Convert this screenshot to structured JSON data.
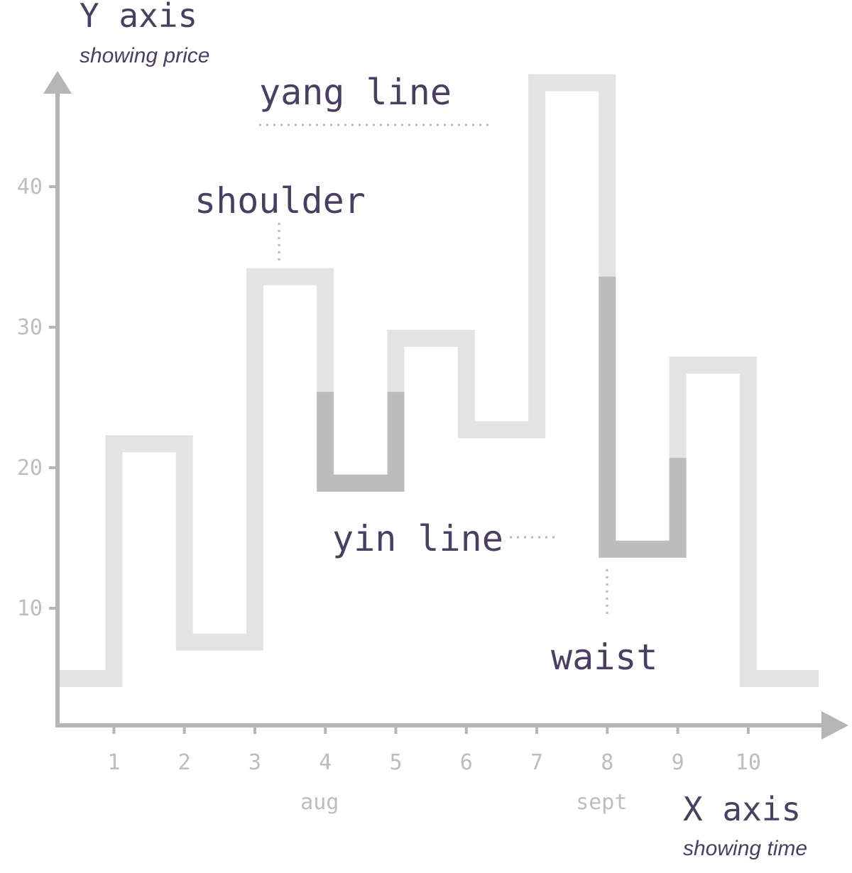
{
  "chart_data": {
    "type": "line",
    "style": "kagi",
    "x_ticks": [
      "1",
      "2",
      "3",
      "4",
      "5",
      "6",
      "7",
      "8",
      "9",
      "10"
    ],
    "y_ticks": [
      "10",
      "20",
      "30",
      "40"
    ],
    "month_labels": [
      {
        "text": "aug",
        "at": 4
      },
      {
        "text": "sept",
        "at": 8
      }
    ],
    "xlabel": "X axis",
    "xlabel_sub": "showing time",
    "ylabel": "Y axis",
    "ylabel_sub": "showing price",
    "xlim": [
      0.2,
      11.2
    ],
    "ylim": [
      1.8,
      46
    ],
    "vertices": [
      {
        "x": 0.2,
        "y": 5
      },
      {
        "x": 1,
        "y": 5
      },
      {
        "x": 1,
        "y": 21.7
      },
      {
        "x": 2,
        "y": 21.7
      },
      {
        "x": 2,
        "y": 7.6
      },
      {
        "x": 3,
        "y": 7.6
      },
      {
        "x": 3,
        "y": 33.6
      },
      {
        "x": 4,
        "y": 33.6
      },
      {
        "x": 4,
        "y": 18.9
      },
      {
        "x": 5,
        "y": 18.9
      },
      {
        "x": 5,
        "y": 29.2
      },
      {
        "x": 6,
        "y": 29.2
      },
      {
        "x": 6,
        "y": 22.7
      },
      {
        "x": 7,
        "y": 22.7
      },
      {
        "x": 7,
        "y": 47.4
      },
      {
        "x": 8,
        "y": 47.4
      },
      {
        "x": 8,
        "y": 14.2
      },
      {
        "x": 9,
        "y": 14.2
      },
      {
        "x": 9,
        "y": 27.3
      },
      {
        "x": 10,
        "y": 27.3
      },
      {
        "x": 10,
        "y": 5
      },
      {
        "x": 11,
        "y": 5
      }
    ],
    "yin_segments": [
      {
        "x1": 4,
        "x2": 5,
        "top": 25.4,
        "bottom": 18.9
      },
      {
        "x1": 8,
        "x2": 9,
        "top": 33.6,
        "bottom": 14.2,
        "right_top": 20.7
      }
    ],
    "colors": {
      "yang": "#e3e3e3",
      "yin": "#bcbcbc",
      "axis": "#b5b5b5",
      "text": "#4a3f60",
      "tick": "#bdbdbd"
    },
    "annotations": [
      {
        "text": "yang line"
      },
      {
        "text": "shoulder"
      },
      {
        "text": "yin line"
      },
      {
        "text": "waist"
      }
    ]
  }
}
